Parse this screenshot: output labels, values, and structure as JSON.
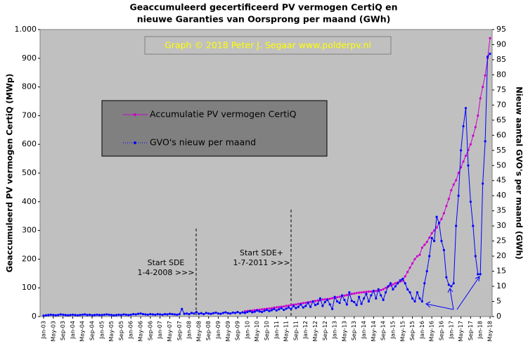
{
  "chart_data": {
    "type": "line",
    "title": [
      "Geaccumuleerd gecertificeerd PV vermogen CertiQ en",
      "nieuwe Garanties van Oorsprong per maand (GWh)"
    ],
    "watermark": "Graph  © 2018  Peter  J. Segaar   www.polderpv.nl",
    "ylabel": "Geaccumuleerd PV vermogen CertiQ (MWp)",
    "y2label": "Nieuw aantal GVO's per maand (GWh)",
    "annotations": [
      "Start SDE",
      "1-4-2008  >>>",
      "Start SDE+",
      "1-7-2011  >>>"
    ],
    "categories": [
      "Jan-03",
      null,
      null,
      null,
      "May-03",
      null,
      null,
      null,
      "Sep-03",
      null,
      null,
      null,
      "Jan-04",
      null,
      null,
      null,
      "May-04",
      null,
      null,
      null,
      "Sep-04",
      null,
      null,
      null,
      "Jan-05",
      null,
      null,
      null,
      "May-05",
      null,
      null,
      null,
      "Sep-05",
      null,
      null,
      null,
      "Jan-06",
      null,
      null,
      null,
      "May-06",
      null,
      null,
      null,
      "Sep-06",
      null,
      null,
      null,
      "Jan-07",
      null,
      null,
      null,
      "May-07",
      null,
      null,
      null,
      "Sep-07",
      null,
      null,
      null,
      "Jan-08",
      null,
      null,
      null,
      "May-08",
      null,
      null,
      null,
      "Sep-08",
      null,
      null,
      null,
      "Jan-09",
      null,
      null,
      null,
      "May-09",
      null,
      null,
      null,
      "Sep-09",
      null,
      null,
      null,
      "Jan-10",
      null,
      null,
      null,
      "May-10",
      null,
      null,
      null,
      "Sep-10",
      null,
      null,
      null,
      "Jan-11",
      null,
      null,
      null,
      "May-11",
      null,
      null,
      null,
      "Sep-11",
      null,
      null,
      null,
      "Jan-12",
      null,
      null,
      null,
      "May-12",
      null,
      null,
      null,
      "Sep-12",
      null,
      null,
      null,
      "Jan-13",
      null,
      null,
      null,
      "May-13",
      null,
      null,
      null,
      "Sep-13",
      null,
      null,
      null,
      "Jan-14",
      null,
      null,
      null,
      "May-14",
      null,
      null,
      null,
      "Sep-14",
      null,
      null,
      null,
      "Jan-15",
      null,
      null,
      null,
      "May-15",
      null,
      null,
      null,
      "Sep-15",
      null,
      null,
      null,
      "Jan-16",
      null,
      null,
      null,
      "May-16",
      null,
      null,
      null,
      "Sep-16",
      null,
      null,
      null,
      "Jan-17",
      null,
      null,
      null,
      "May-17",
      null,
      null,
      null,
      "Sep-17",
      null,
      null,
      null,
      "Jan-18",
      null,
      null,
      null,
      "May-18"
    ],
    "series": [
      {
        "name": "Accumulatie PV vermogen CertiQ",
        "color": "#cc00cc",
        "values": [
          null,
          null,
          null,
          null,
          null,
          null,
          null,
          null,
          null,
          null,
          null,
          null,
          null,
          null,
          null,
          null,
          null,
          null,
          null,
          null,
          null,
          null,
          null,
          null,
          null,
          null,
          null,
          null,
          null,
          null,
          null,
          null,
          null,
          null,
          null,
          null,
          null,
          null,
          null,
          null,
          null,
          null,
          null,
          null,
          null,
          null,
          null,
          null,
          null,
          null,
          null,
          null,
          null,
          null,
          null,
          null,
          null,
          null,
          null,
          null,
          null,
          null,
          null,
          null,
          null,
          null,
          null,
          null,
          null,
          null,
          null,
          null,
          null,
          null,
          null,
          null,
          null,
          null,
          null,
          null,
          null,
          null,
          null,
          18,
          19,
          20,
          21,
          22,
          23,
          24,
          25,
          26,
          27,
          28,
          29,
          31,
          32,
          33,
          34,
          35,
          37,
          38,
          40,
          41,
          42,
          44,
          45,
          47,
          48,
          50,
          51,
          53,
          54,
          56,
          57,
          59,
          60,
          61,
          62,
          64,
          65,
          67,
          69,
          71,
          73,
          75,
          77,
          79,
          80,
          82,
          83,
          84,
          85,
          86,
          87,
          87,
          88,
          89,
          90,
          92,
          95,
          100,
          104,
          108,
          112,
          116,
          119,
          122,
          125,
          140,
          155,
          170,
          185,
          200,
          210,
          215,
          240,
          250,
          260,
          275,
          290,
          300,
          310,
          325,
          340,
          360,
          385,
          410,
          440,
          460,
          475,
          500,
          520,
          540,
          560,
          580,
          600,
          630,
          660,
          700,
          760,
          800,
          840,
          900,
          970
        ]
      },
      {
        "name": "GVO's nieuw per maand",
        "color": "#0000ff",
        "axis": "y2",
        "values": [
          0.3,
          0.4,
          0.5,
          0.6,
          0.5,
          0.4,
          0.5,
          0.7,
          0.6,
          0.5,
          0.4,
          0.5,
          0.6,
          0.5,
          0.4,
          0.5,
          0.6,
          0.7,
          0.5,
          0.6,
          0.4,
          0.5,
          0.6,
          0.5,
          0.5,
          0.6,
          0.7,
          0.6,
          0.5,
          0.4,
          0.5,
          0.6,
          0.5,
          0.7,
          0.6,
          0.5,
          0.6,
          0.8,
          0.7,
          0.9,
          1.0,
          0.8,
          0.7,
          0.6,
          0.8,
          0.7,
          0.6,
          0.8,
          0.7,
          0.6,
          0.8,
          0.7,
          0.9,
          0.8,
          0.7,
          0.6,
          0.8,
          2.5,
          0.9,
          1.0,
          0.8,
          1.2,
          1.0,
          1.5,
          0.9,
          1.1,
          0.8,
          1.2,
          1.0,
          0.9,
          1.1,
          1.3,
          1.0,
          0.9,
          1.2,
          1.4,
          1.1,
          1.0,
          1.3,
          1.2,
          1.5,
          1.1,
          1.4,
          1.2,
          1.5,
          1.8,
          1.4,
          1.6,
          2.0,
          1.7,
          1.5,
          1.9,
          2.2,
          1.8,
          2.1,
          2.5,
          2.0,
          2.4,
          2.8,
          2.2,
          2.6,
          3.0,
          2.5,
          3.5,
          2.8,
          3.2,
          4.0,
          3.0,
          3.5,
          4.5,
          3.2,
          5.0,
          3.8,
          4.2,
          6.0,
          3.5,
          4.8,
          5.5,
          4.0,
          2.5,
          6.5,
          5.0,
          4.5,
          7.0,
          5.5,
          4.0,
          8.0,
          5.2,
          4.8,
          3.8,
          6.5,
          4.2,
          6.0,
          7.5,
          5.0,
          7.0,
          8.5,
          6.0,
          9.0,
          7.0,
          5.5,
          8.0,
          10.0,
          11.0,
          9,
          10,
          11,
          12,
          12.5,
          11,
          9,
          8,
          6,
          5,
          8,
          6,
          5,
          11,
          15,
          20,
          26,
          25,
          33,
          31,
          25,
          22,
          13,
          10.5,
          10,
          11,
          30,
          40,
          55,
          63,
          69,
          50,
          38,
          30,
          20,
          14,
          14,
          44,
          58,
          86,
          87
        ]
      }
    ],
    "ylim": [
      0,
      1000
    ],
    "yticks": [
      0,
      100,
      200,
      300,
      400,
      500,
      600,
      700,
      800,
      900,
      {
        "value": 1000,
        "label": "1.000"
      }
    ],
    "y2lim": [
      0,
      95
    ],
    "y2ticks": [
      0,
      5,
      10,
      15,
      20,
      25,
      30,
      35,
      40,
      45,
      50,
      55,
      60,
      65,
      70,
      75,
      80,
      85,
      90,
      95
    ],
    "legend": "upper left",
    "plot_background": "#c0c0c0"
  }
}
